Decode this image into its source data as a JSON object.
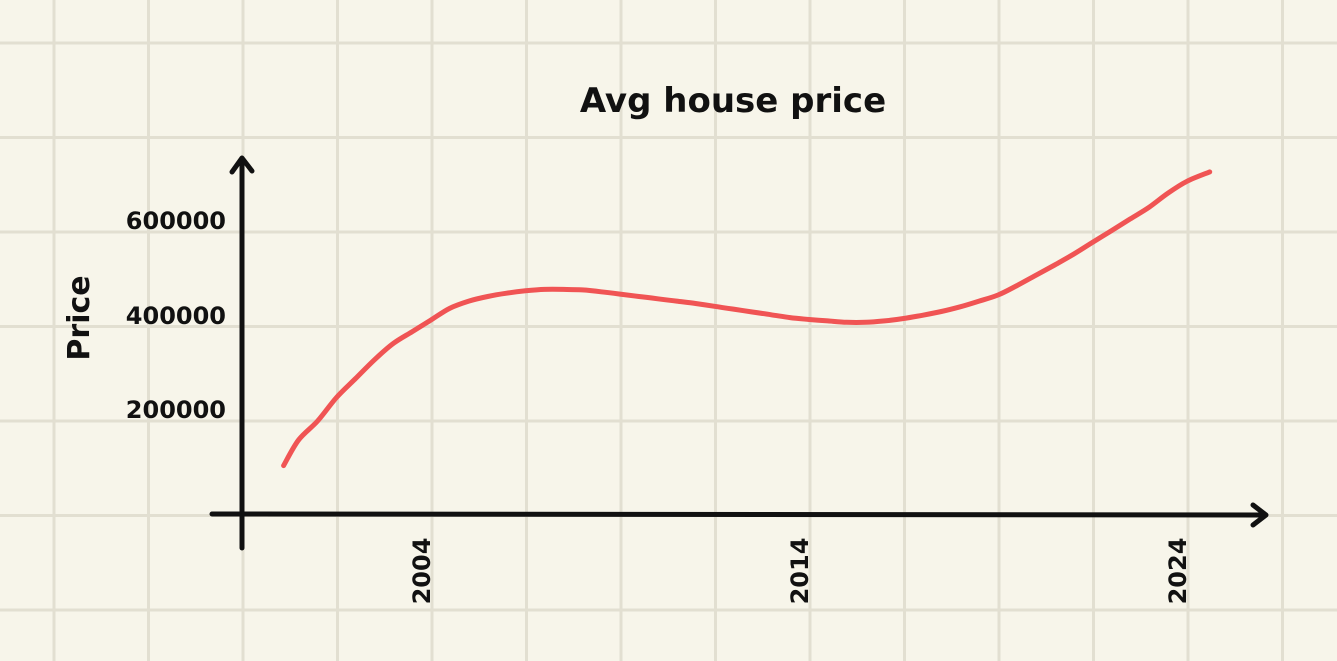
{
  "chart_data": {
    "type": "line",
    "title": "Avg house price",
    "xlabel": "",
    "ylabel": "Price",
    "x_ticks": [
      "2004",
      "2014",
      "2024"
    ],
    "y_ticks": [
      "200000",
      "400000",
      "600000"
    ],
    "y_tick_values": [
      200000,
      400000,
      600000
    ],
    "xlim": [
      1999,
      2025.5
    ],
    "ylim": [
      0,
      750000
    ],
    "grid": true,
    "legend": "none",
    "series": [
      {
        "color": "#f05454",
        "x": [
          2000.1,
          2000.5,
          2001,
          2001.5,
          2002,
          2002.5,
          2003,
          2003.5,
          2004,
          2004.5,
          2005,
          2005.5,
          2006,
          2006.5,
          2007,
          2007.5,
          2008,
          2008.5,
          2009,
          2009.5,
          2010,
          2010.5,
          2011,
          2011.5,
          2012,
          2012.5,
          2013,
          2013.5,
          2014,
          2014.5,
          2015,
          2015.5,
          2016,
          2016.5,
          2017,
          2017.5,
          2018,
          2018.5,
          2019,
          2019.5,
          2020,
          2020.5,
          2021,
          2021.5,
          2022,
          2022.5,
          2023,
          2023.5,
          2024,
          2024.6
        ],
        "y": [
          105000,
          160000,
          200000,
          250000,
          290000,
          330000,
          365000,
          390000,
          415000,
          440000,
          455000,
          465000,
          472000,
          477000,
          480000,
          480000,
          479000,
          475000,
          470000,
          465000,
          460000,
          455000,
          450000,
          444000,
          438000,
          432000,
          426000,
          420000,
          416000,
          413000,
          410000,
          410000,
          413000,
          418000,
          425000,
          433000,
          443000,
          455000,
          468000,
          488000,
          510000,
          532000,
          555000,
          580000,
          605000,
          630000,
          655000,
          685000,
          710000,
          730000
        ]
      }
    ]
  }
}
